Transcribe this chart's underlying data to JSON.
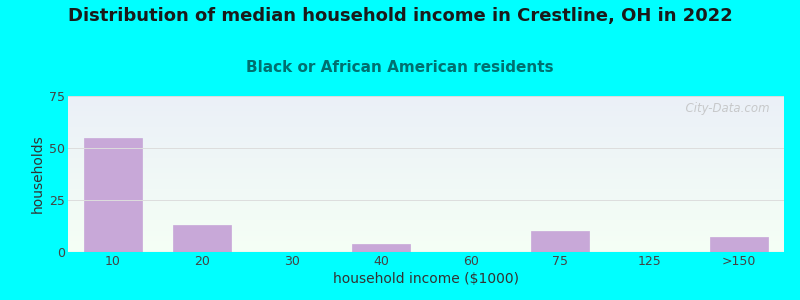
{
  "title": "Distribution of median household income in Crestline, OH in 2022",
  "subtitle": "Black or African American residents",
  "xlabel": "household income ($1000)",
  "ylabel": "households",
  "background_outer": "#00FFFF",
  "bar_color": "#c8a8d8",
  "bar_edge_color": "#c8a8d8",
  "categories": [
    "10",
    "20",
    "30",
    "40",
    "60",
    "75",
    "125",
    ">150"
  ],
  "values": [
    55,
    13,
    0,
    4,
    0,
    10,
    0,
    7
  ],
  "ylim": [
    0,
    75
  ],
  "yticks": [
    0,
    25,
    50,
    75
  ],
  "title_fontsize": 13,
  "subtitle_fontsize": 11,
  "axis_label_fontsize": 10,
  "tick_fontsize": 9,
  "watermark": "  City-Data.com"
}
